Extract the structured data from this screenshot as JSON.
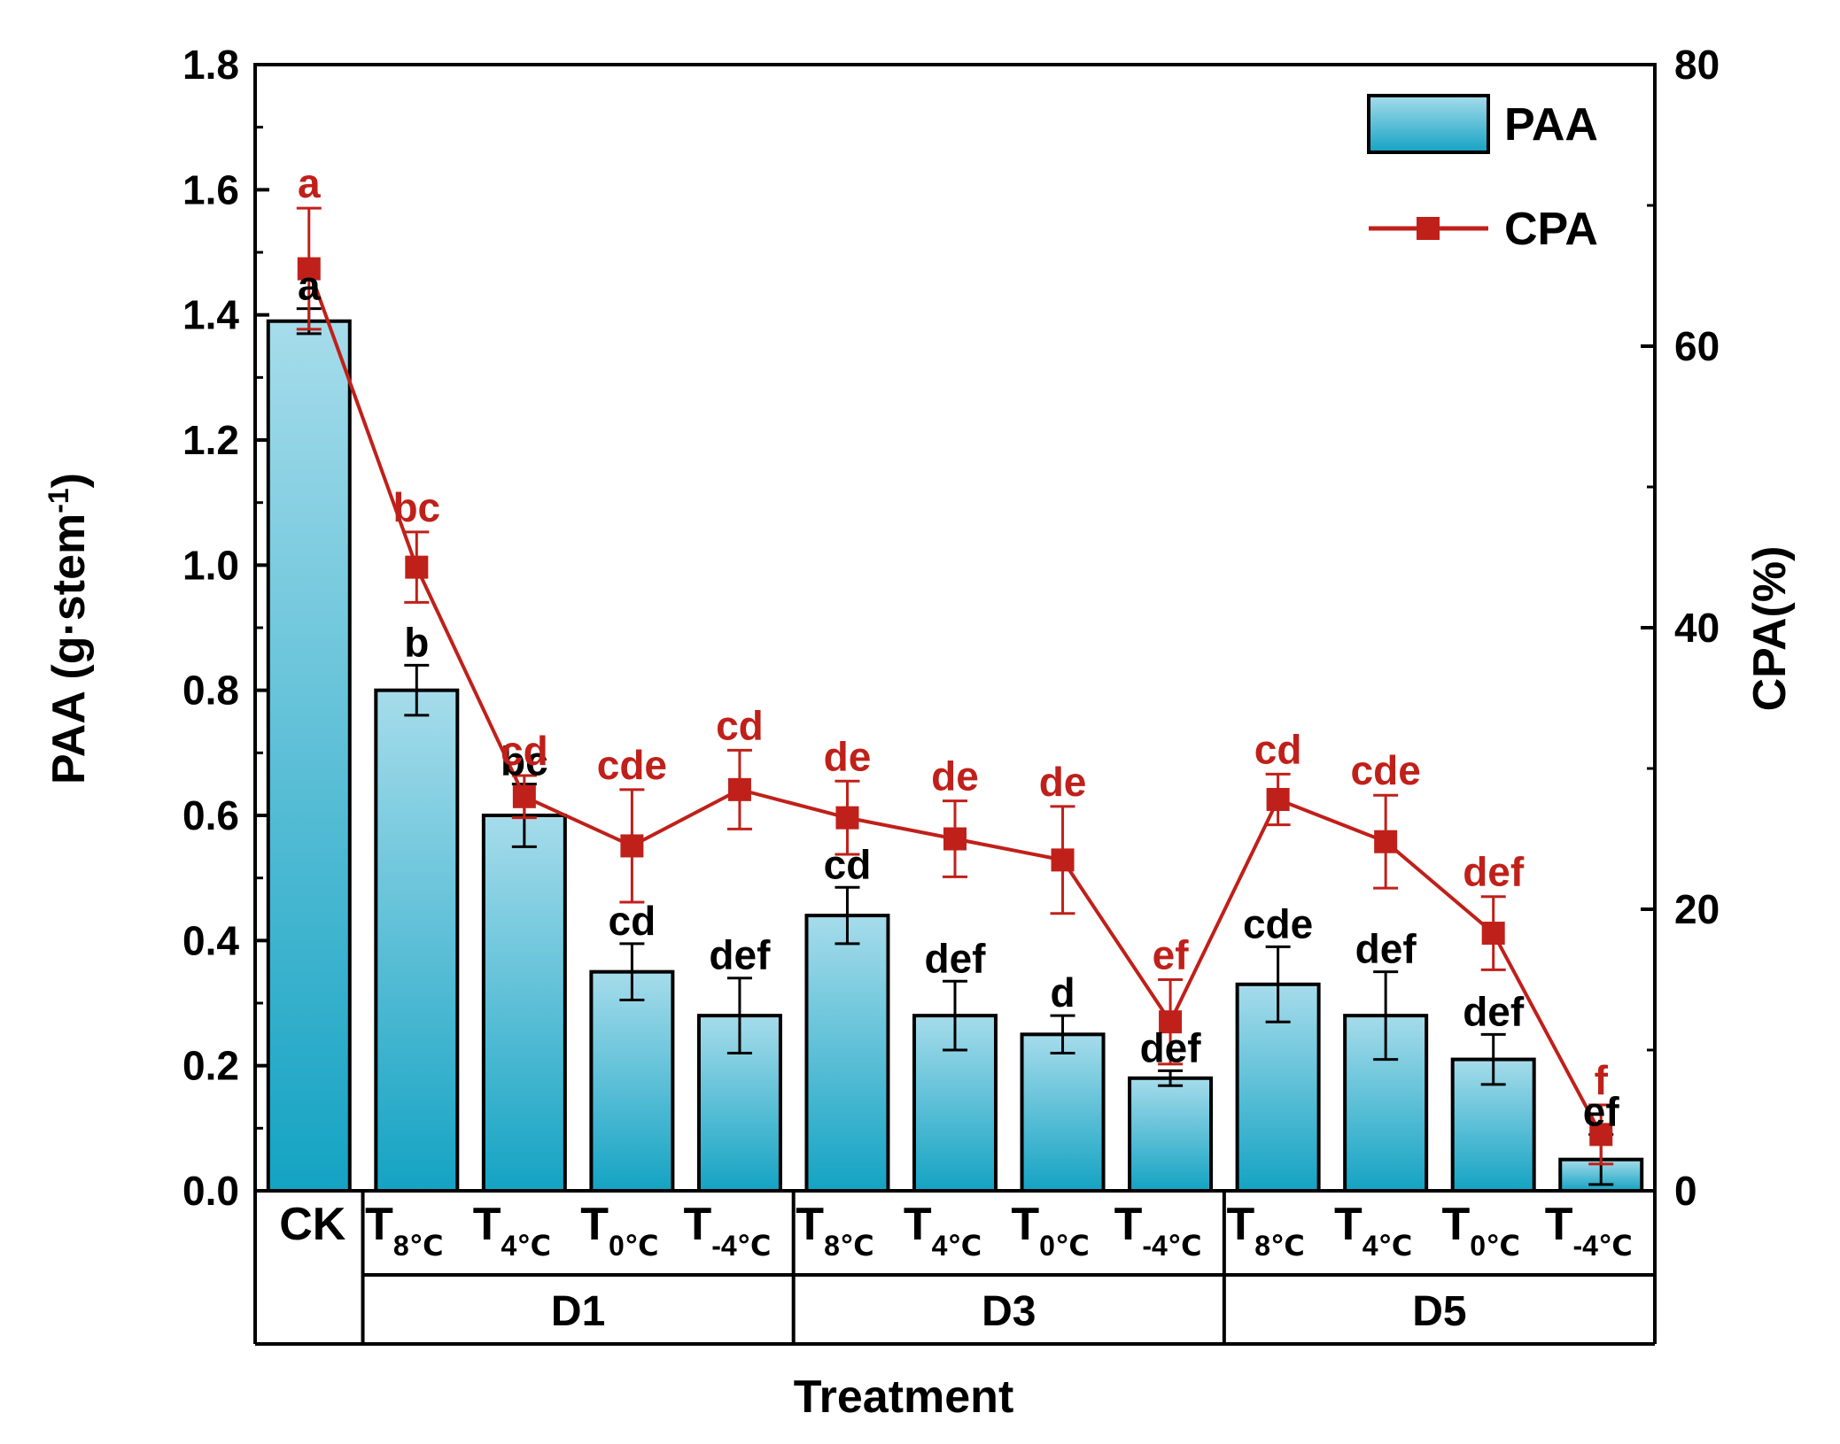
{
  "chart_data": {
    "type": "bar+line",
    "title": "",
    "xlabel": "Treatment",
    "ylabel_left": "PAA (g·stem",
    "ylabel_left_sup": "-1",
    "ylabel_left_close": ")",
    "ylabel_right": "CPA(%)",
    "ylim_left": [
      0,
      1.8
    ],
    "ylim_right": [
      0,
      80
    ],
    "yticks_left": [
      "0.0",
      "0.2",
      "0.4",
      "0.6",
      "0.8",
      "1.0",
      "1.2",
      "1.4",
      "1.6",
      "1.8"
    ],
    "yticks_right": [
      "0",
      "20",
      "40",
      "60",
      "80"
    ],
    "categories": [
      {
        "main": "CK",
        "sub": ""
      },
      {
        "main": "T",
        "sub": "8℃"
      },
      {
        "main": "T",
        "sub": "4℃"
      },
      {
        "main": "T",
        "sub": "0℃"
      },
      {
        "main": "T",
        "sub": "-4℃"
      },
      {
        "main": "T",
        "sub": "8℃"
      },
      {
        "main": "T",
        "sub": "4℃"
      },
      {
        "main": "T",
        "sub": "0℃"
      },
      {
        "main": "T",
        "sub": "-4℃"
      },
      {
        "main": "T",
        "sub": "8℃"
      },
      {
        "main": "T",
        "sub": "4℃"
      },
      {
        "main": "T",
        "sub": "0℃"
      },
      {
        "main": "T",
        "sub": "-4℃"
      }
    ],
    "groups": [
      {
        "label": "D1",
        "start": 1,
        "end": 4
      },
      {
        "label": "D3",
        "start": 5,
        "end": 8
      },
      {
        "label": "D5",
        "start": 9,
        "end": 12
      }
    ],
    "series": [
      {
        "name": "PAA",
        "kind": "bar",
        "axis": "left",
        "values": [
          1.39,
          0.8,
          0.6,
          0.35,
          0.28,
          0.44,
          0.28,
          0.25,
          0.18,
          0.33,
          0.28,
          0.21,
          0.05
        ],
        "errors": [
          0.02,
          0.04,
          0.05,
          0.045,
          0.06,
          0.045,
          0.055,
          0.03,
          0.012,
          0.06,
          0.07,
          0.04,
          0.04
        ],
        "letters": [
          "a",
          "b",
          "bc",
          "cd",
          "def",
          "cd",
          "def",
          "d",
          "def",
          "cde",
          "def",
          "def",
          "ef"
        ]
      },
      {
        "name": "CPA",
        "kind": "line",
        "axis": "right",
        "values": [
          65.5,
          44.3,
          28.0,
          24.5,
          28.5,
          26.5,
          25.0,
          23.5,
          12.0,
          27.8,
          24.8,
          18.3,
          4.0
        ],
        "errors": [
          4.3,
          2.5,
          1.5,
          4.0,
          2.8,
          2.6,
          2.7,
          3.8,
          3.0,
          1.8,
          3.3,
          2.6,
          2.1
        ],
        "letters": [
          "a",
          "bc",
          "cd",
          "cde",
          "cd",
          "de",
          "de",
          "de",
          "ef",
          "cd",
          "cde",
          "def",
          "f"
        ]
      }
    ],
    "legend": {
      "placement": "top-right",
      "entries": [
        "PAA",
        "CPA"
      ]
    },
    "colors": {
      "line": "#c0201a",
      "bar_top": "#a6dceb",
      "bar_bottom": "#14a3c3",
      "letters_line": "#c0201a"
    }
  }
}
